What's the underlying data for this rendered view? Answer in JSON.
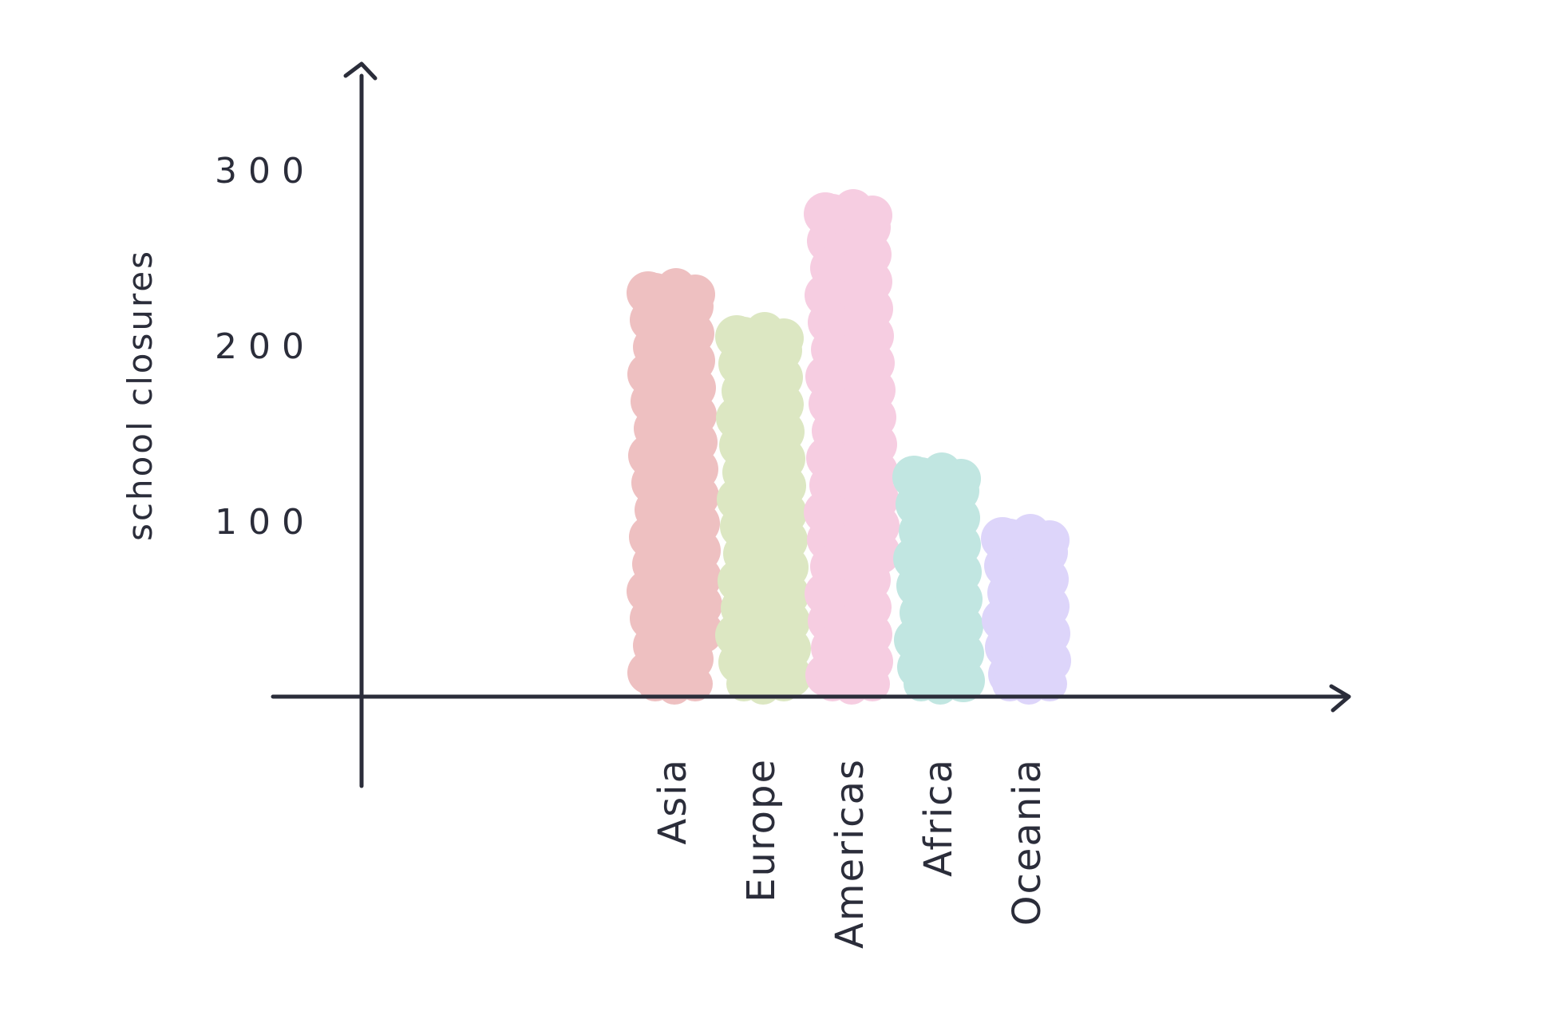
{
  "chart_data": {
    "type": "bar",
    "title": "",
    "xlabel": "",
    "ylabel": "school closures",
    "categories": [
      "Asia",
      "Europe",
      "Americas",
      "Africa",
      "Oceania"
    ],
    "values": [
      240,
      215,
      285,
      135,
      100
    ],
    "colors": [
      "#eec0c1",
      "#dce7c2",
      "#f6cde1",
      "#c1e6e1",
      "#ddd5fa"
    ],
    "yticks": [
      100,
      200,
      300
    ],
    "ytick_labels": [
      "100",
      "200",
      "300"
    ],
    "ylim": [
      0,
      330
    ],
    "grid": false,
    "legend": "none"
  }
}
